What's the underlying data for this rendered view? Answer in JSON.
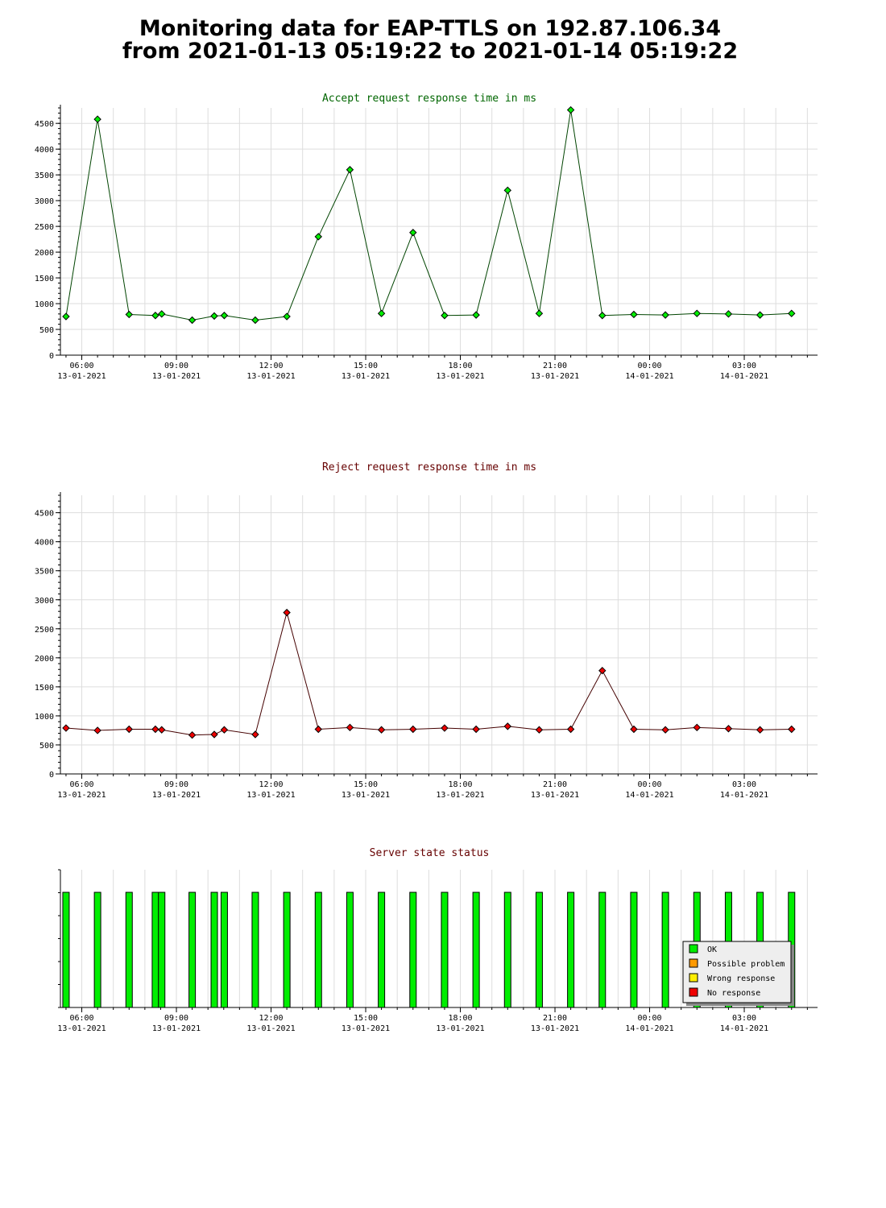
{
  "header": {
    "title_line1": "Monitoring data for EAP-TTLS on 192.87.106.34",
    "title_line2": "from 2021-01-13 05:19:22 to 2021-01-14 05:19:22"
  },
  "colors": {
    "accept_line": "#004400",
    "accept_marker": "#00ee00",
    "accept_title": "#006600",
    "reject_line": "#440000",
    "reject_marker": "#ee0000",
    "reject_title": "#660000",
    "status_title": "#660000",
    "grid": "#dddddd",
    "ok": "#00ee00",
    "possible_problem": "#ff9900",
    "wrong_response": "#ffee00",
    "no_response": "#ee0000"
  },
  "x_ticks": [
    {
      "time": "06:00",
      "date": "13-01-2021"
    },
    {
      "time": "09:00",
      "date": "13-01-2021"
    },
    {
      "time": "12:00",
      "date": "13-01-2021"
    },
    {
      "time": "15:00",
      "date": "13-01-2021"
    },
    {
      "time": "18:00",
      "date": "13-01-2021"
    },
    {
      "time": "21:00",
      "date": "13-01-2021"
    },
    {
      "time": "00:00",
      "date": "14-01-2021"
    },
    {
      "time": "03:00",
      "date": "14-01-2021"
    }
  ],
  "chart_data": [
    {
      "type": "line",
      "title": "Accept request response time in ms",
      "xlabel": "",
      "ylabel": "",
      "xlim": [
        "2021-01-13 05:19:22",
        "2021-01-14 05:19:22"
      ],
      "ylim": [
        0,
        4800
      ],
      "yticks": [
        0,
        500,
        1000,
        1500,
        2000,
        2500,
        3000,
        3500,
        4000,
        4500
      ],
      "grid": true,
      "series": [
        {
          "x": [
            "2021-01-13 05:30",
            "2021-01-13 06:30",
            "2021-01-13 07:30",
            "2021-01-13 08:20",
            "2021-01-13 08:32",
            "2021-01-13 09:30",
            "2021-01-13 10:12",
            "2021-01-13 10:31",
            "2021-01-13 11:30",
            "2021-01-13 12:30",
            "2021-01-13 13:30",
            "2021-01-13 14:30",
            "2021-01-13 15:30",
            "2021-01-13 16:30",
            "2021-01-13 17:30",
            "2021-01-13 18:30",
            "2021-01-13 19:30",
            "2021-01-13 20:30",
            "2021-01-13 21:30",
            "2021-01-13 22:30",
            "2021-01-13 23:30",
            "2021-01-14 00:30",
            "2021-01-14 01:30",
            "2021-01-14 02:30",
            "2021-01-14 03:30",
            "2021-01-14 04:30"
          ],
          "y": [
            750,
            4580,
            790,
            770,
            800,
            680,
            760,
            770,
            680,
            750,
            2300,
            3600,
            810,
            2380,
            770,
            780,
            3200,
            810,
            4760,
            770,
            790,
            780,
            810,
            800,
            780,
            810
          ]
        }
      ]
    },
    {
      "type": "line",
      "title": "Reject request response time in ms",
      "xlabel": "",
      "ylabel": "",
      "xlim": [
        "2021-01-13 05:19:22",
        "2021-01-14 05:19:22"
      ],
      "ylim": [
        0,
        4800
      ],
      "yticks": [
        0,
        500,
        1000,
        1500,
        2000,
        2500,
        3000,
        3500,
        4000,
        4500
      ],
      "grid": true,
      "series": [
        {
          "x": [
            "2021-01-13 05:30",
            "2021-01-13 06:30",
            "2021-01-13 07:30",
            "2021-01-13 08:20",
            "2021-01-13 08:32",
            "2021-01-13 09:30",
            "2021-01-13 10:12",
            "2021-01-13 10:31",
            "2021-01-13 11:30",
            "2021-01-13 12:30",
            "2021-01-13 13:30",
            "2021-01-13 14:30",
            "2021-01-13 15:30",
            "2021-01-13 16:30",
            "2021-01-13 17:30",
            "2021-01-13 18:30",
            "2021-01-13 19:30",
            "2021-01-13 20:30",
            "2021-01-13 21:30",
            "2021-01-13 22:30",
            "2021-01-13 23:30",
            "2021-01-14 00:30",
            "2021-01-14 01:30",
            "2021-01-14 02:30",
            "2021-01-14 03:30",
            "2021-01-14 04:30"
          ],
          "y": [
            790,
            750,
            770,
            770,
            760,
            670,
            680,
            760,
            680,
            2780,
            770,
            800,
            760,
            770,
            790,
            770,
            820,
            760,
            770,
            1780,
            770,
            760,
            800,
            780,
            760,
            770
          ]
        }
      ]
    },
    {
      "type": "bar",
      "title": "Server state status",
      "xlim": [
        "2021-01-13 05:19:22",
        "2021-01-14 05:19:22"
      ],
      "legend": {
        "position": "bottom-right",
        "entries": [
          "OK",
          "Possible problem",
          "Wrong response",
          "No response"
        ]
      },
      "bars": [
        {
          "x": "2021-01-13 05:30",
          "state": "OK"
        },
        {
          "x": "2021-01-13 06:30",
          "state": "OK"
        },
        {
          "x": "2021-01-13 07:30",
          "state": "OK"
        },
        {
          "x": "2021-01-13 08:20",
          "state": "OK"
        },
        {
          "x": "2021-01-13 08:32",
          "state": "OK"
        },
        {
          "x": "2021-01-13 09:30",
          "state": "OK"
        },
        {
          "x": "2021-01-13 10:12",
          "state": "OK"
        },
        {
          "x": "2021-01-13 10:31",
          "state": "OK"
        },
        {
          "x": "2021-01-13 11:30",
          "state": "OK"
        },
        {
          "x": "2021-01-13 12:30",
          "state": "OK"
        },
        {
          "x": "2021-01-13 13:30",
          "state": "OK"
        },
        {
          "x": "2021-01-13 14:30",
          "state": "OK"
        },
        {
          "x": "2021-01-13 15:30",
          "state": "OK"
        },
        {
          "x": "2021-01-13 16:30",
          "state": "OK"
        },
        {
          "x": "2021-01-13 17:30",
          "state": "OK"
        },
        {
          "x": "2021-01-13 18:30",
          "state": "OK"
        },
        {
          "x": "2021-01-13 19:30",
          "state": "OK"
        },
        {
          "x": "2021-01-13 20:30",
          "state": "OK"
        },
        {
          "x": "2021-01-13 21:30",
          "state": "OK"
        },
        {
          "x": "2021-01-13 22:30",
          "state": "OK"
        },
        {
          "x": "2021-01-13 23:30",
          "state": "OK"
        },
        {
          "x": "2021-01-14 00:30",
          "state": "OK"
        },
        {
          "x": "2021-01-14 01:30",
          "state": "OK"
        },
        {
          "x": "2021-01-14 02:30",
          "state": "OK"
        },
        {
          "x": "2021-01-14 03:30",
          "state": "OK"
        },
        {
          "x": "2021-01-14 04:30",
          "state": "OK"
        }
      ]
    }
  ]
}
